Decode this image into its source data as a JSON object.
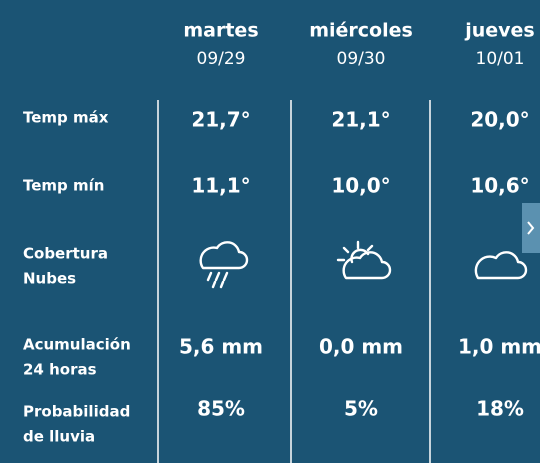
{
  "rows": [
    {
      "label": [
        "Temp máx"
      ],
      "values": [
        "21,7°",
        "21,1°",
        "20,0°"
      ]
    },
    {
      "label": [
        "Temp mín"
      ],
      "values": [
        "11,1°",
        "10,0°",
        "10,6°"
      ]
    },
    {
      "label": [
        "Cobertura",
        "Nubes"
      ]
    },
    {
      "label": [
        "Acumulación",
        "24 horas"
      ],
      "values": [
        "5,6 mm",
        "0,0 mm",
        "1,0 mm"
      ]
    },
    {
      "label": [
        "Probabilidad",
        "de lluvia"
      ],
      "values": [
        "85%",
        "5%",
        "18%"
      ]
    }
  ],
  "days": [
    {
      "name": "martes",
      "date": "09/29"
    },
    {
      "name": "miércoles",
      "date": "09/30"
    },
    {
      "name": "jueves",
      "date": "10/01"
    }
  ]
}
